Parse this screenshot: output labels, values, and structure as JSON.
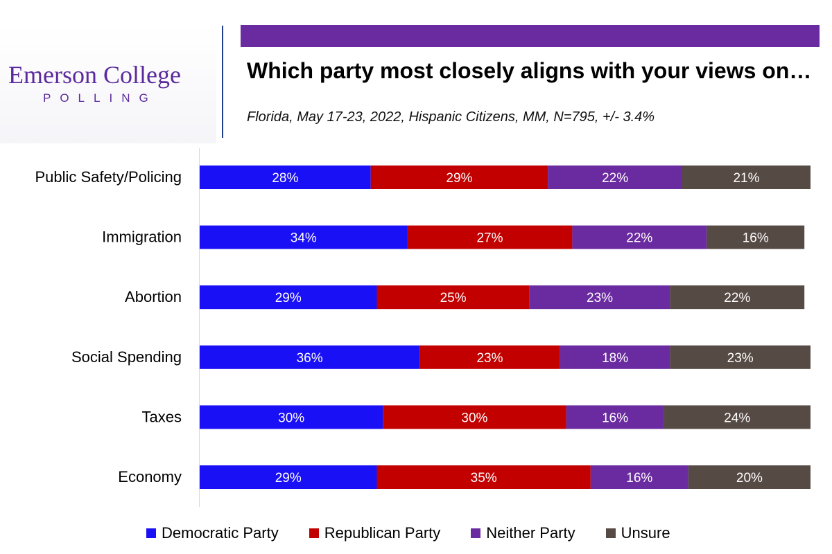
{
  "logo": {
    "name": "Emerson College",
    "sub": "POLLING"
  },
  "title": "Which party most closely aligns with your views on…",
  "subtitle": "Florida, May 17-23, 2022, Hispanic Citizens, MM, N=795, +/- 3.4%",
  "colors": {
    "accent_bar": "#6a2aa0",
    "democratic": "#1a10f5",
    "republican": "#c20000",
    "neither": "#6a2aa0",
    "unsure": "#564a45"
  },
  "chart_data": {
    "type": "bar",
    "orientation": "horizontal",
    "stacked": true,
    "categories": [
      "Public Safety/Policing",
      "Immigration",
      "Abortion",
      "Social Spending",
      "Taxes",
      "Economy"
    ],
    "series": [
      {
        "name": "Democratic Party",
        "values": [
          28,
          34,
          29,
          36,
          30,
          29
        ]
      },
      {
        "name": "Republican Party",
        "values": [
          29,
          27,
          25,
          23,
          30,
          35
        ]
      },
      {
        "name": "Neither Party",
        "values": [
          22,
          22,
          23,
          18,
          16,
          16
        ]
      },
      {
        "name": "Unsure",
        "values": [
          21,
          16,
          22,
          23,
          24,
          20
        ]
      }
    ],
    "value_suffix": "%",
    "xlim": [
      0,
      100
    ],
    "grid": false,
    "legend_position": "bottom"
  }
}
